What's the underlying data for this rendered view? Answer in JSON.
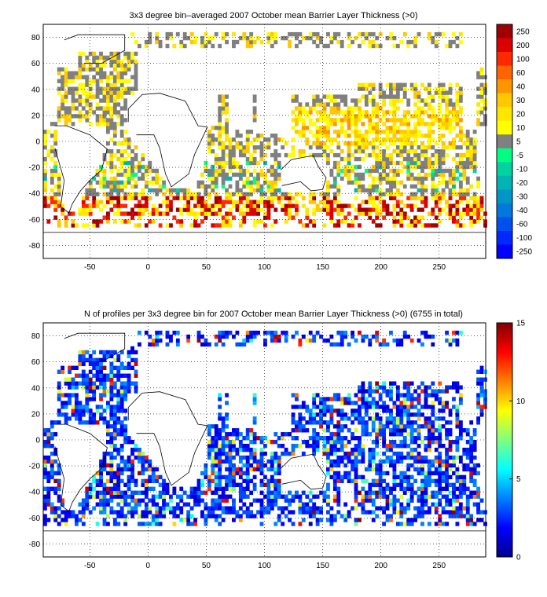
{
  "chart_data": [
    {
      "type": "heatmap",
      "title": "3x3 degree bin–averaged 2007 October mean Barrier Layer Thickness (>0)",
      "xlabel": "",
      "ylabel": "",
      "xlim": [
        -90,
        290
      ],
      "ylim": [
        -90,
        90
      ],
      "x_ticks": [
        "-50",
        "0",
        "50",
        "100",
        "150",
        "200",
        "250"
      ],
      "y_ticks": [
        "80",
        "60",
        "40",
        "20",
        "0",
        "-20",
        "-40",
        "-60",
        "-80"
      ],
      "grid": true,
      "colorbar": {
        "labels": [
          "250",
          "200",
          "100",
          "60",
          "40",
          "30",
          "20",
          "10",
          "5",
          "-5",
          "-10",
          "-20",
          "-30",
          "-40",
          "-60",
          "-100",
          "-250"
        ],
        "colors": [
          "#a00000",
          "#dc0000",
          "#ff2800",
          "#ff6400",
          "#ff9600",
          "#ffc800",
          "#ffe600",
          "#ffff00",
          "#808080",
          "#00ff80",
          "#00d2a0",
          "#00b4b4",
          "#0096c8",
          "#0078dc",
          "#0050f0",
          "#0028ff",
          "#0000ff"
        ]
      }
    },
    {
      "type": "heatmap",
      "title": "N of profiles per 3x3 degree bin for 2007 October mean Barrier Layer Thickness (>0) (6755 in total)",
      "xlabel": "",
      "ylabel": "",
      "xlim": [
        -90,
        290
      ],
      "ylim": [
        -90,
        90
      ],
      "x_ticks": [
        "-50",
        "0",
        "50",
        "100",
        "150",
        "200",
        "250"
      ],
      "y_ticks": [
        "80",
        "60",
        "40",
        "20",
        "0",
        "-20",
        "-40",
        "-60",
        "-80"
      ],
      "grid": true,
      "total_profiles": 6755,
      "colorbar": {
        "range": [
          0,
          15
        ],
        "tick_labels": [
          "15",
          "10",
          "5",
          "0"
        ],
        "colormap": "jet"
      }
    }
  ]
}
